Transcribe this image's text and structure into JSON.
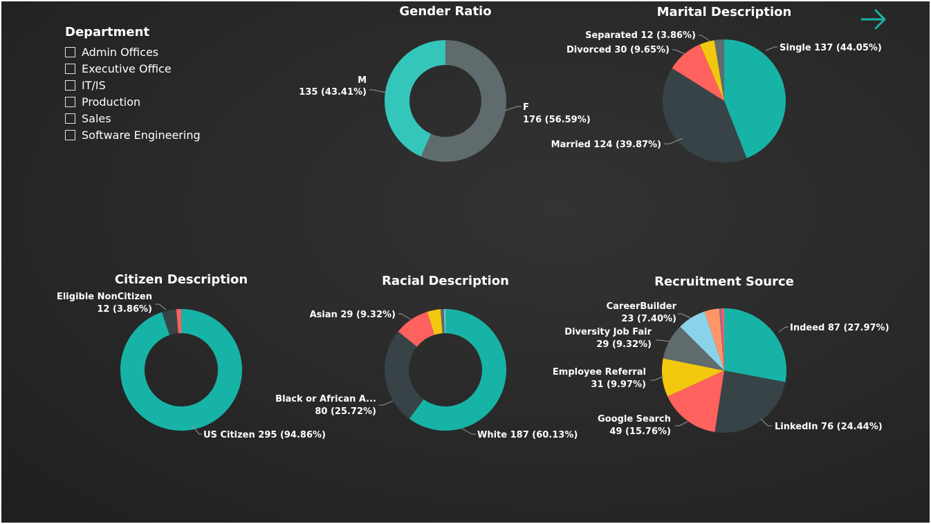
{
  "slicer": {
    "title": "Department",
    "items": [
      "Admin Offices",
      "Executive Office",
      "IT/IS",
      "Production",
      "Sales",
      "Software Engineering"
    ]
  },
  "nav": {
    "icon": "arrow-right-icon",
    "color": "#17b3a6"
  },
  "colors": {
    "teal": "#17b3a6",
    "gray": "#5f6b6d",
    "dark": "#374346",
    "red": "#fd625e",
    "yellow": "#f2c80f",
    "lightblue": "#8ad4eb",
    "orange": "#fe9666",
    "purple": "#a66999",
    "tealLight": "#34c6bb"
  },
  "chart_data": [
    {
      "id": "gender",
      "type": "pie",
      "title": "Gender Ratio",
      "donut": true,
      "slices": [
        {
          "name": "F",
          "value": 176,
          "pct": "56.59%",
          "color": "#5f6b6d"
        },
        {
          "name": "M",
          "value": 135,
          "pct": "43.41%",
          "color": "#34c6bb"
        }
      ],
      "labels": [
        {
          "line1": "F",
          "line2": "176 (56.59%)"
        },
        {
          "line1": "M",
          "line2": "135 (43.41%)"
        }
      ]
    },
    {
      "id": "marital",
      "type": "pie",
      "title": "Marital Description",
      "donut": false,
      "slices": [
        {
          "name": "Single",
          "value": 137,
          "pct": "44.05%",
          "color": "#17b3a6"
        },
        {
          "name": "Married",
          "value": 124,
          "pct": "39.87%",
          "color": "#374346"
        },
        {
          "name": "Divorced",
          "value": 30,
          "pct": "9.65%",
          "color": "#fd625e"
        },
        {
          "name": "Separated",
          "value": 12,
          "pct": "3.86%",
          "color": "#f2c80f"
        },
        {
          "name": "",
          "value": 8,
          "pct": "",
          "color": "#5f6b6d"
        }
      ],
      "labels": [
        {
          "text": "Single 137 (44.05%)"
        },
        {
          "text": "Married 124 (39.87%)"
        },
        {
          "text": "Divorced 30 (9.65%)"
        },
        {
          "text": "Separated 12 (3.86%)"
        }
      ]
    },
    {
      "id": "citizen",
      "type": "pie",
      "title": "Citizen Description",
      "donut": true,
      "slices": [
        {
          "name": "US Citizen",
          "value": 295,
          "pct": "94.86%",
          "color": "#17b3a6"
        },
        {
          "name": "Eligible NonCitizen",
          "value": 12,
          "pct": "3.86%",
          "color": "#374346"
        },
        {
          "name": "",
          "value": 4,
          "pct": "",
          "color": "#fd625e"
        }
      ],
      "labels": [
        {
          "text": "US Citizen 295 (94.86%)"
        },
        {
          "line1": "Eligible NonCitizen",
          "line2": "12 (3.86%)"
        }
      ]
    },
    {
      "id": "racial",
      "type": "pie",
      "title": "Racial Description",
      "donut": true,
      "slices": [
        {
          "name": "White",
          "value": 187,
          "pct": "60.13%",
          "color": "#17b3a6"
        },
        {
          "name": "Black or African A...",
          "value": 80,
          "pct": "25.72%",
          "color": "#374346"
        },
        {
          "name": "Asian",
          "value": 29,
          "pct": "9.32%",
          "color": "#fd625e"
        },
        {
          "name": "",
          "value": 11,
          "pct": "",
          "color": "#f2c80f"
        },
        {
          "name": "",
          "value": 3,
          "pct": "",
          "color": "#5f6b6d"
        },
        {
          "name": "",
          "value": 1,
          "pct": "",
          "color": "#8ad4eb"
        }
      ],
      "labels": [
        {
          "text": "White 187 (60.13%)"
        },
        {
          "line1": "Black or African A...",
          "line2": "80 (25.72%)"
        },
        {
          "text": "Asian 29 (9.32%)"
        }
      ]
    },
    {
      "id": "recruit",
      "type": "pie",
      "title": "Recruitment Source",
      "donut": false,
      "slices": [
        {
          "name": "Indeed",
          "value": 87,
          "pct": "27.97%",
          "color": "#17b3a6"
        },
        {
          "name": "LinkedIn",
          "value": 76,
          "pct": "24.44%",
          "color": "#374346"
        },
        {
          "name": "Google Search",
          "value": 49,
          "pct": "15.76%",
          "color": "#fd625e"
        },
        {
          "name": "Employee Referral",
          "value": 31,
          "pct": "9.97%",
          "color": "#f2c80f"
        },
        {
          "name": "Diversity Job Fair",
          "value": 29,
          "pct": "9.32%",
          "color": "#5f6b6d"
        },
        {
          "name": "CareerBuilder",
          "value": 23,
          "pct": "7.40%",
          "color": "#8ad4eb"
        },
        {
          "name": "",
          "value": 12,
          "pct": "",
          "color": "#fe9666"
        },
        {
          "name": "",
          "value": 2,
          "pct": "",
          "color": "#a66999"
        },
        {
          "name": "",
          "value": 2,
          "pct": "",
          "color": "#fd625e"
        }
      ],
      "labels": [
        {
          "text": "Indeed 87 (27.97%)"
        },
        {
          "text": "LinkedIn 76 (24.44%)"
        },
        {
          "line1": "Google Search",
          "line2": "49 (15.76%)"
        },
        {
          "line1": "Employee Referral",
          "line2": "31 (9.97%)"
        },
        {
          "line1": "Diversity Job Fair",
          "line2": "29 (9.32%)"
        },
        {
          "line1": "CareerBuilder",
          "line2": "23 (7.40%)"
        }
      ]
    }
  ]
}
